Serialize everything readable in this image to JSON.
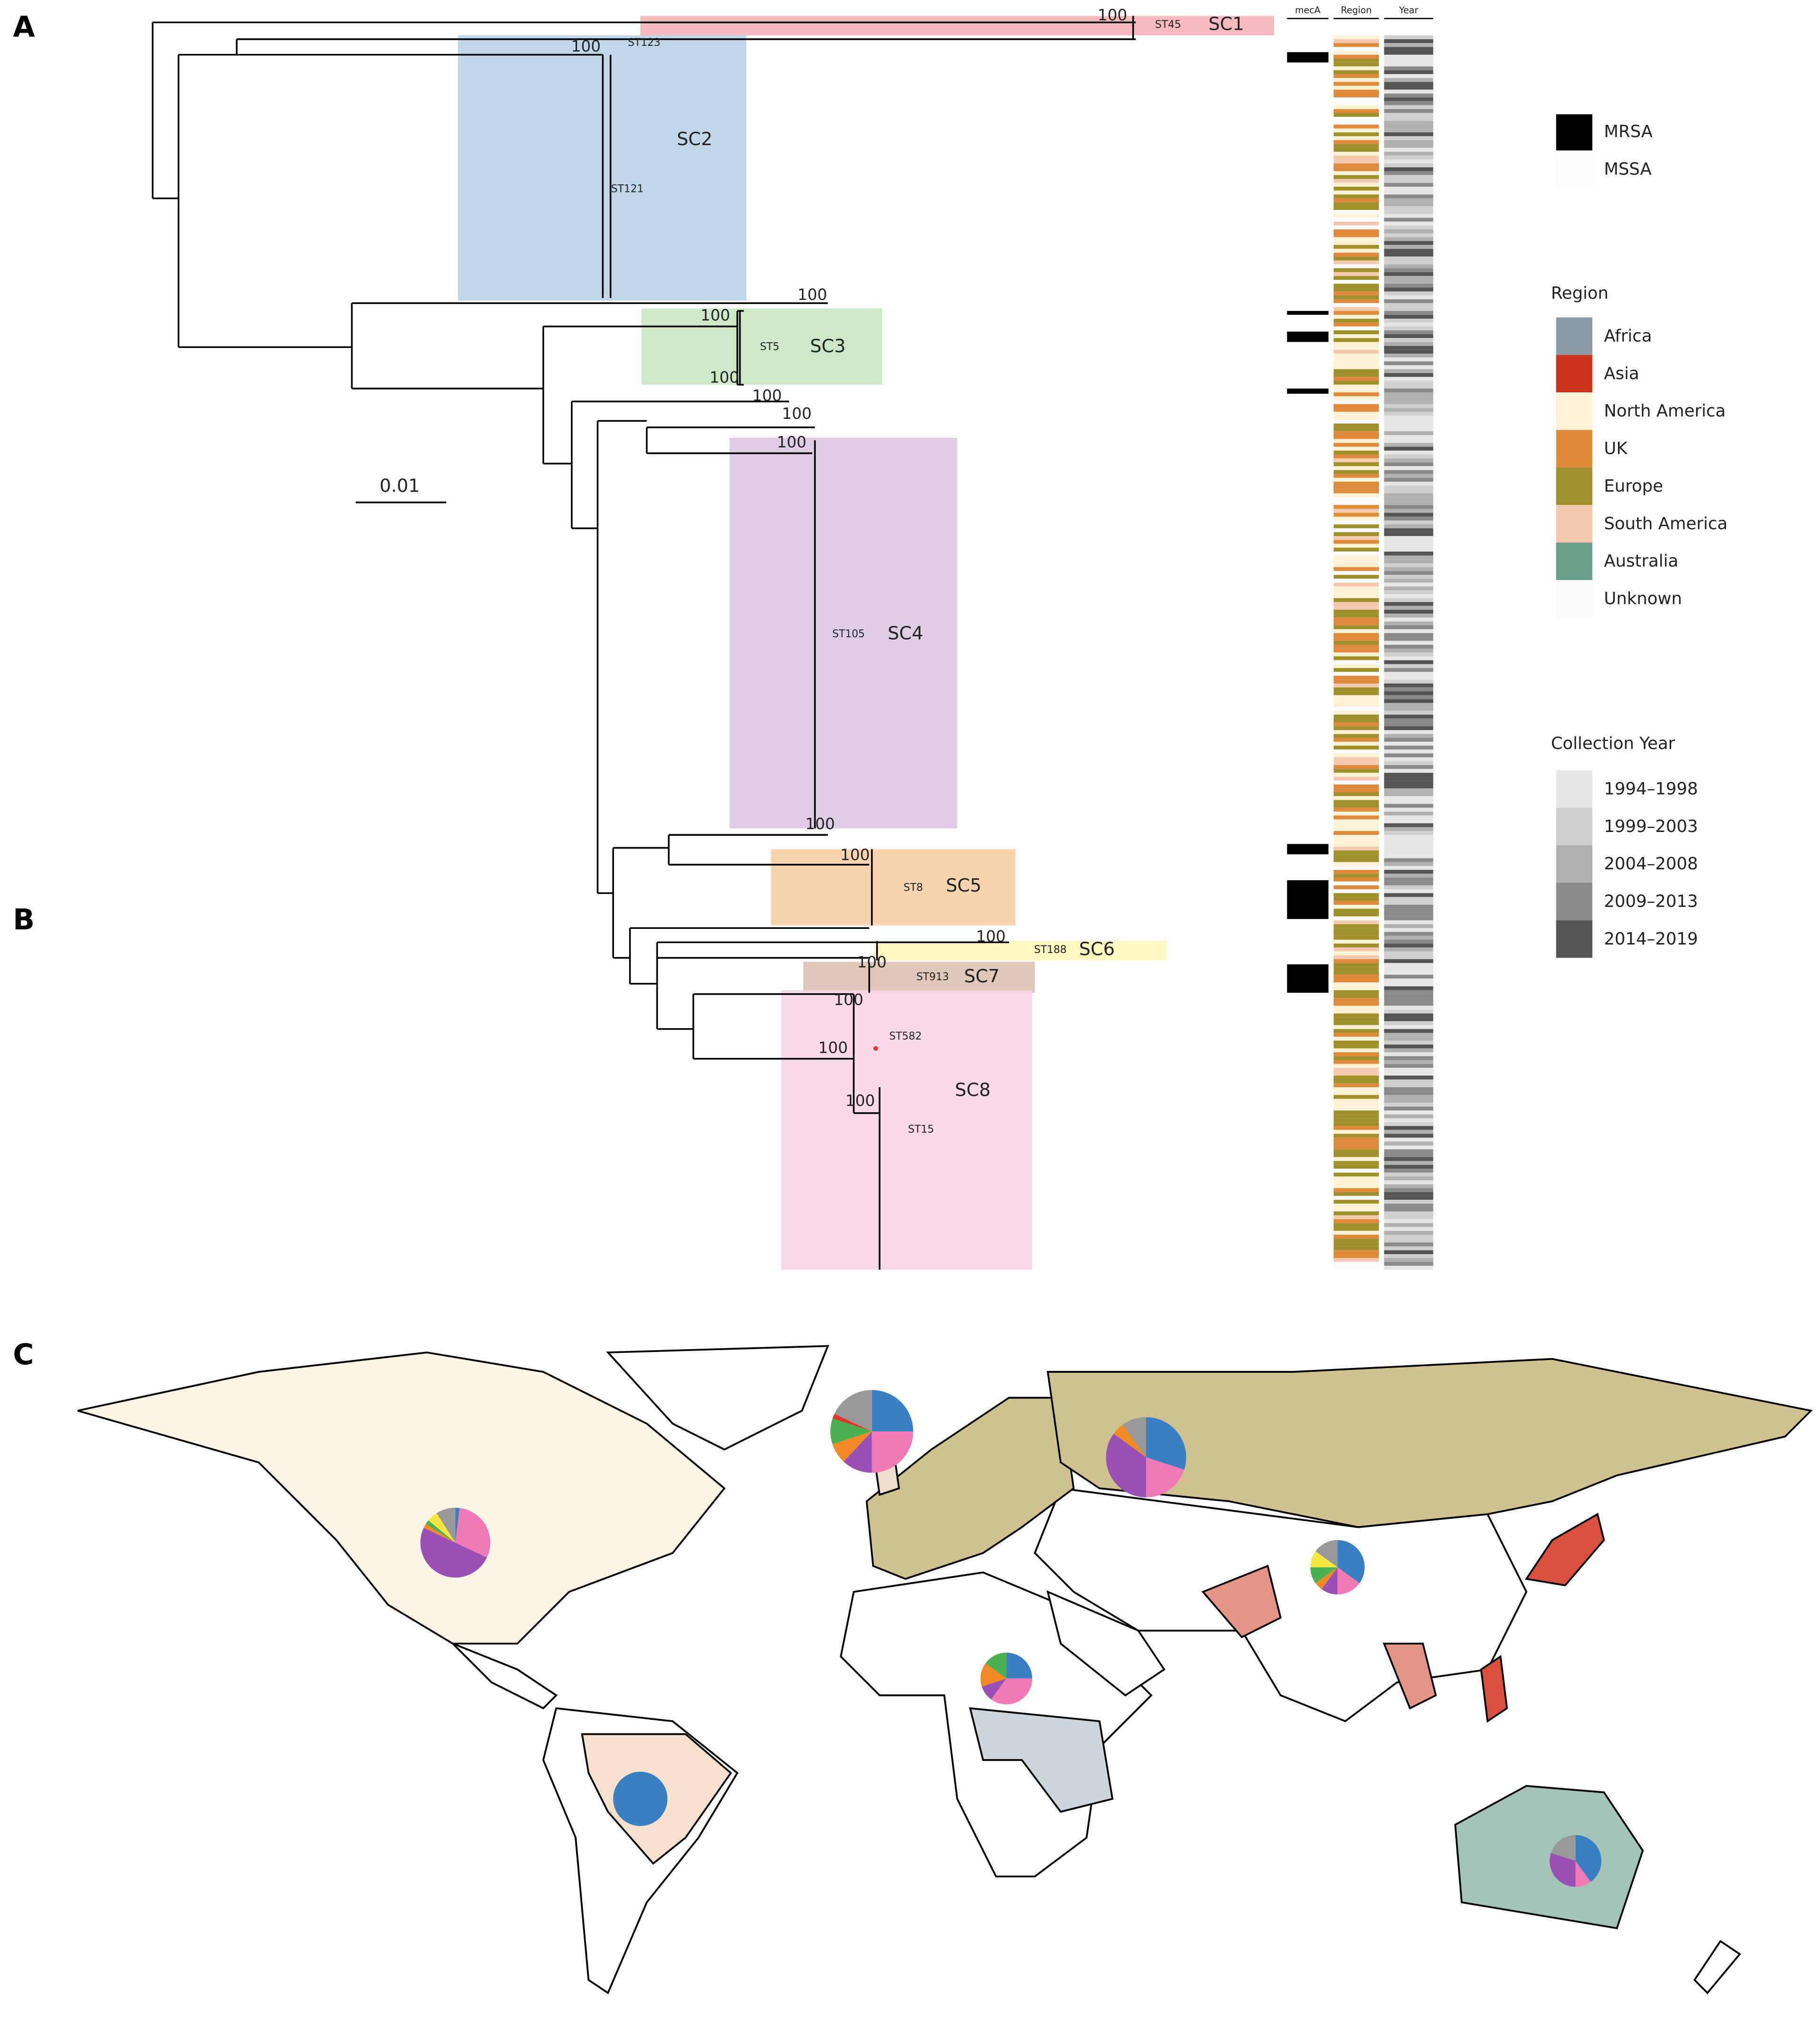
{
  "panel_labels": [
    "A",
    "B",
    "C"
  ],
  "tree": {
    "scale_bar": "0.01",
    "track_headers": [
      "mecA",
      "Region",
      "Year"
    ],
    "clades": [
      {
        "label": "SC1",
        "st": "ST45",
        "color": "#f4b3b6"
      },
      {
        "label": "SC2",
        "st": "ST121",
        "color": "#b9d1e7"
      },
      {
        "label": "SC3",
        "st": "ST5",
        "color": "#c7e6c1"
      },
      {
        "label": "SC4",
        "st": "ST105",
        "color": "#dcc6e2"
      },
      {
        "label": "SC5",
        "st": "ST8",
        "color": "#f8cfa8"
      },
      {
        "label": "SC6",
        "st": "ST188",
        "color": "#fdf6ba"
      },
      {
        "label": "SC7",
        "st": "ST913",
        "color": "#dcc1b1"
      },
      {
        "label": "SC8",
        "st": "ST15",
        "color": "#f8d4e8"
      }
    ],
    "extra_st": [
      "ST123",
      "ST582"
    ],
    "bootstrap": [
      "100",
      "100",
      "100",
      "100",
      "100",
      "100",
      "100",
      "100",
      "100",
      "100",
      "100",
      "100",
      "100",
      "100",
      "100"
    ]
  },
  "legend": {
    "meca": [
      {
        "label": "MRSA",
        "color": "#000000"
      },
      {
        "label": "MSSA",
        "color": "#fdfdfd"
      }
    ],
    "region": {
      "title": "Region",
      "items": [
        {
          "label": "Africa",
          "color": "#8a9ba6"
        },
        {
          "label": "Asia",
          "color": "#c9341a"
        },
        {
          "label": "North America",
          "color": "#fbf1d4"
        },
        {
          "label": "UK",
          "color": "#e08a3c"
        },
        {
          "label": "Europe",
          "color": "#a0902c"
        },
        {
          "label": "South America",
          "color": "#f3c9b0"
        },
        {
          "label": "Australia",
          "color": "#6b9e88"
        },
        {
          "label": "Unknown",
          "color": "#fbfbfb"
        }
      ]
    },
    "year": {
      "title": "Collection Year",
      "items": [
        {
          "label": "1994–1998",
          "color": "#e6e6e6"
        },
        {
          "label": "1999–2003",
          "color": "#cfcfcf"
        },
        {
          "label": "2004–2008",
          "color": "#b0b0b0"
        },
        {
          "label": "2009–2013",
          "color": "#8a8a8a"
        },
        {
          "label": "2014–2019",
          "color": "#555555"
        }
      ]
    }
  },
  "map": {
    "slice_colors": [
      "#3a7fc1",
      "#f07ab8",
      "#9b51b3",
      "#f08a24",
      "#4caf50",
      "#f5e740",
      "#d93a2b",
      "#999999"
    ],
    "pies": [
      {
        "values": [
          2,
          30,
          50,
          2,
          2,
          5,
          0,
          9
        ]
      },
      {
        "values": [
          25,
          25,
          12,
          8,
          10,
          0,
          2,
          18
        ]
      },
      {
        "values": [
          30,
          20,
          35,
          5,
          0,
          0,
          0,
          10
        ]
      },
      {
        "values": [
          35,
          15,
          10,
          5,
          10,
          10,
          0,
          15
        ]
      },
      {
        "values": [
          25,
          35,
          10,
          15,
          15,
          0,
          0,
          0
        ]
      },
      {
        "values": [
          100,
          0,
          0,
          0,
          0,
          0,
          0,
          0
        ]
      },
      {
        "values": [
          40,
          10,
          30,
          0,
          0,
          0,
          0,
          20
        ]
      }
    ]
  }
}
